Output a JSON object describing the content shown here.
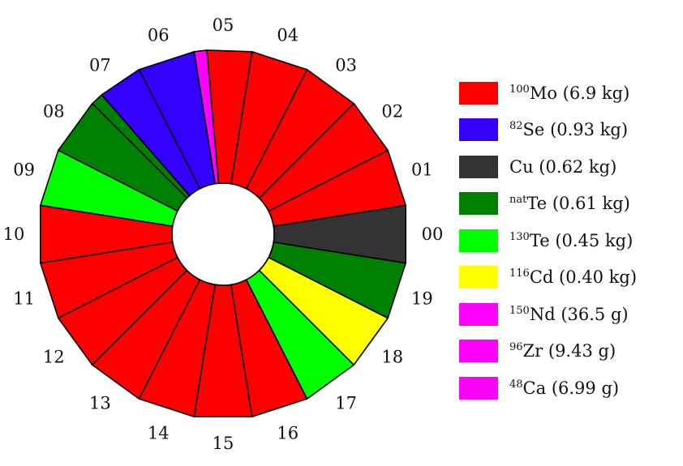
{
  "sectors": [
    {
      "label": "00",
      "fill": "Cu"
    },
    {
      "label": "01",
      "fill": "Mo"
    },
    {
      "label": "02",
      "fill": "Mo"
    },
    {
      "label": "03",
      "fill": "Mo"
    },
    {
      "label": "04",
      "fill": "Mo"
    },
    {
      "label": "05",
      "fill": "Mo"
    },
    {
      "label": "06",
      "fill": "Se"
    },
    {
      "label": "07",
      "fill": "Se"
    },
    {
      "label": "08",
      "fill": "natTe"
    },
    {
      "label": "09",
      "fill": "130Te"
    },
    {
      "label": "10",
      "fill": "Mo"
    },
    {
      "label": "11",
      "fill": "Mo"
    },
    {
      "label": "12",
      "fill": "Mo"
    },
    {
      "label": "13",
      "fill": "Mo"
    },
    {
      "label": "14",
      "fill": "Mo"
    },
    {
      "label": "15",
      "fill": "Mo"
    },
    {
      "label": "16",
      "fill": "Mo"
    },
    {
      "label": "17",
      "fill": "130Te"
    },
    {
      "label": "18",
      "fill": "Cd"
    },
    {
      "label": "19",
      "fill": "natTe"
    }
  ],
  "sector_splits": {
    "05": {
      "fill": "Mo",
      "secondary": "Nd"
    },
    "07": {
      "fill": "Se",
      "secondary": "natTe"
    }
  },
  "materials": {
    "Mo": "#ff0000",
    "Se": "#3300ff",
    "Cu": "#333333",
    "natTe": "#008000",
    "130Te": "#00ff00",
    "Cd": "#ffff00",
    "Nd": "#ff00ff",
    "Zr": "#ff00ff",
    "Ca": "#ff00ff"
  },
  "legend": [
    {
      "mass_number": "100",
      "element": "Mo",
      "mass": "(6.9 kg)",
      "color": "#ff0000"
    },
    {
      "mass_number": "82",
      "element": "Se",
      "mass": "(0.93 kg)",
      "color": "#3300ff"
    },
    {
      "mass_number": "",
      "element": "Cu",
      "mass": "(0.62 kg)",
      "color": "#333333"
    },
    {
      "mass_number": "nat",
      "element": "Te",
      "mass": "(0.61 kg)",
      "color": "#008000"
    },
    {
      "mass_number": "130",
      "element": "Te",
      "mass": "(0.45 kg)",
      "color": "#00ff00"
    },
    {
      "mass_number": "116",
      "element": "Cd",
      "mass": "(0.40 kg)",
      "color": "#ffff00"
    },
    {
      "mass_number": "150",
      "element": "Nd",
      "mass": "(36.5 g)",
      "color": "#ff00ff"
    },
    {
      "mass_number": "96",
      "element": "Zr",
      "mass": "(9.43 g)",
      "color": "#ff00ff"
    },
    {
      "mass_number": "48",
      "element": "Ca",
      "mass": "(6.99 g)",
      "color": "#ff00ff"
    }
  ]
}
